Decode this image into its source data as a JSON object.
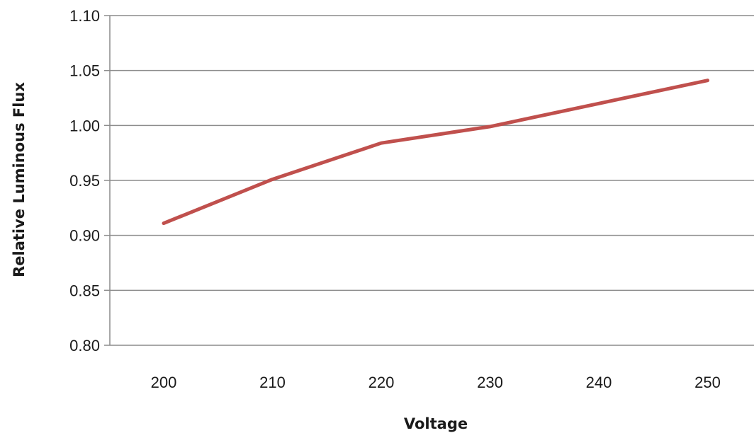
{
  "chart_data": {
    "type": "line",
    "title": "",
    "xlabel": "Voltage",
    "ylabel": "Relative Luminous Flux",
    "categories": [
      "200",
      "210",
      "220",
      "230",
      "240",
      "250"
    ],
    "x": [
      200,
      210,
      220,
      230,
      240,
      250
    ],
    "series": [
      {
        "values": [
          0.911,
          0.951,
          0.984,
          0.999,
          1.02,
          1.041
        ],
        "color": "#c0504d"
      }
    ],
    "ylim": [
      0.8,
      1.1
    ],
    "yticks": [
      "0.80",
      "0.85",
      "0.90",
      "0.95",
      "1.00",
      "1.05",
      "1.10"
    ],
    "grid": true,
    "legend": "none",
    "colors": {
      "line": "#c0504d",
      "grid": "#8c8c8c",
      "axis": "#8c8c8c",
      "text": "#1a1a1a"
    }
  }
}
